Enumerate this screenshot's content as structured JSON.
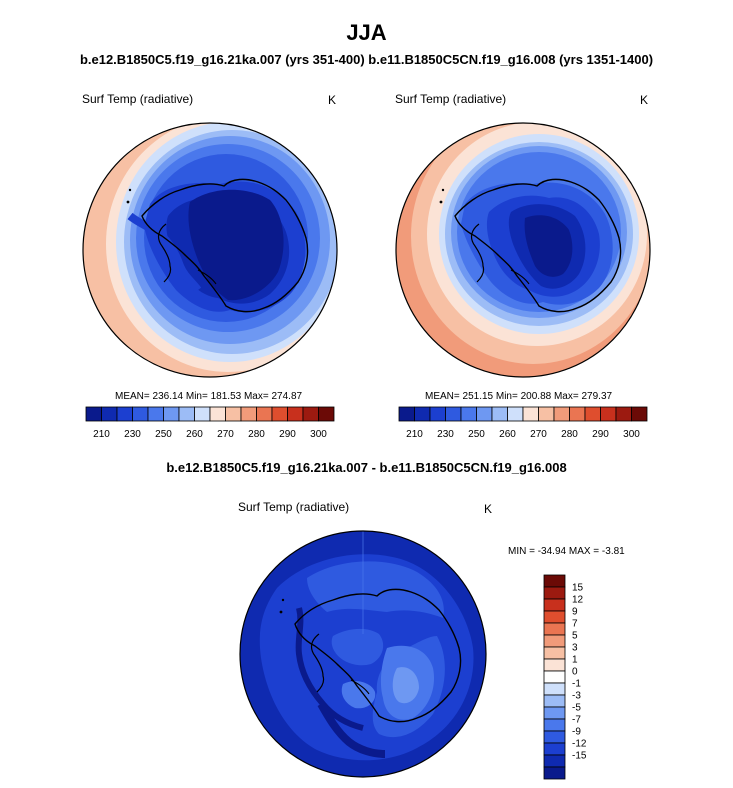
{
  "title": "JJA",
  "subtitle": "b.e12.B1850C5.f19_g16.21ka.007 (yrs 351-400) b.e11.B1850C5CN.f19_g16.008 (yrs 1351-1400)",
  "panels": [
    {
      "variable": "Surf Temp (radiative)",
      "units": "K",
      "stats": "MEAN= 236.14  Min= 181.53  Max= 274.87"
    },
    {
      "variable": "Surf Temp (radiative)",
      "units": "K",
      "stats": "MEAN= 251.15  Min= 200.88  Max= 279.37"
    }
  ],
  "abs_colorbar": {
    "colors": [
      "#0a1a8c",
      "#0f2ab0",
      "#1c3fd0",
      "#2f5ae0",
      "#4a78ec",
      "#6e98f2",
      "#9cbcf6",
      "#cfe0fb",
      "#fbe3d6",
      "#f7c0a4",
      "#f19b7a",
      "#ea7552",
      "#df4e2e",
      "#c8301d",
      "#9c1a10",
      "#6b0a06"
    ],
    "ticks": [
      "210",
      "230",
      "250",
      "260",
      "270",
      "280",
      "290",
      "300"
    ]
  },
  "diff_title": "b.e12.B1850C5.f19_g16.21ka.007 - b.e11.B1850C5CN.f19_g16.008",
  "diff_panel": {
    "variable": "Surf Temp (radiative)",
    "units": "K",
    "stats": "MIN = -34.94 MAX =  -3.81"
  },
  "diff_colorbar": {
    "colors": [
      "#0a1a8c",
      "#0f2ab0",
      "#1c3fd0",
      "#2f5ae0",
      "#4a78ec",
      "#6e98f2",
      "#9cbcf6",
      "#cfe0fb",
      "#ffffff",
      "#fbe3d6",
      "#f7c0a4",
      "#f19b7a",
      "#ea7552",
      "#df4e2e",
      "#c8301d",
      "#9c1a10",
      "#6b0a06"
    ],
    "ticks": [
      "15",
      "12",
      "9",
      "7",
      "5",
      "3",
      "1",
      "0",
      "-1",
      "-3",
      "-5",
      "-7",
      "-9",
      "-12",
      "-15"
    ]
  }
}
